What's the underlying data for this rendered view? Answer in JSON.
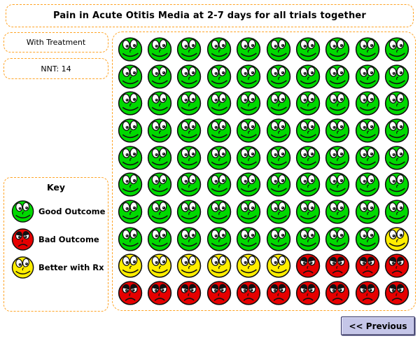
{
  "title": "Pain in Acute Otitis Media at 2-7 days for all trials together",
  "panels": {
    "treatment_label": "With Treatment",
    "nnt_label": "NNT: 14"
  },
  "key": {
    "title": "Key",
    "items": [
      {
        "face": "green",
        "label": "Good Outcome"
      },
      {
        "face": "red",
        "label": "Bad Outcome"
      },
      {
        "face": "yellow",
        "label": "Better with Rx"
      }
    ]
  },
  "button": {
    "label": "<< Previous"
  },
  "colors": {
    "green": "#00d900",
    "yellow": "#ffee00",
    "red": "#e60000",
    "outline": "#101010",
    "border_orange": "#ffa426",
    "button_fill": "#c5c6e8"
  },
  "chart_data": {
    "type": "pictograph",
    "title": "Pain in Acute Otitis Media at 2-7 days for all trials together",
    "rows": 10,
    "cols": 10,
    "grid": [
      "GGGGGGGGGG",
      "GGGGGGGGGG",
      "GGGGGGGGGG",
      "GGGGGGGGGG",
      "GGGGGGGGGG",
      "GGGGGGGGGG",
      "GGGGGGGGGG",
      "GGGGGGGGGY",
      "YYYYYYRRRR",
      "RRRRRRRRRR"
    ],
    "legend": {
      "G": "Good Outcome",
      "R": "Bad Outcome",
      "Y": "Better with Rx"
    },
    "counts": {
      "good_outcome_green": 79,
      "better_with_rx_yellow": 7,
      "bad_outcome_red": 14,
      "total": 100
    },
    "nnt": 14,
    "condition_label": "With Treatment"
  }
}
